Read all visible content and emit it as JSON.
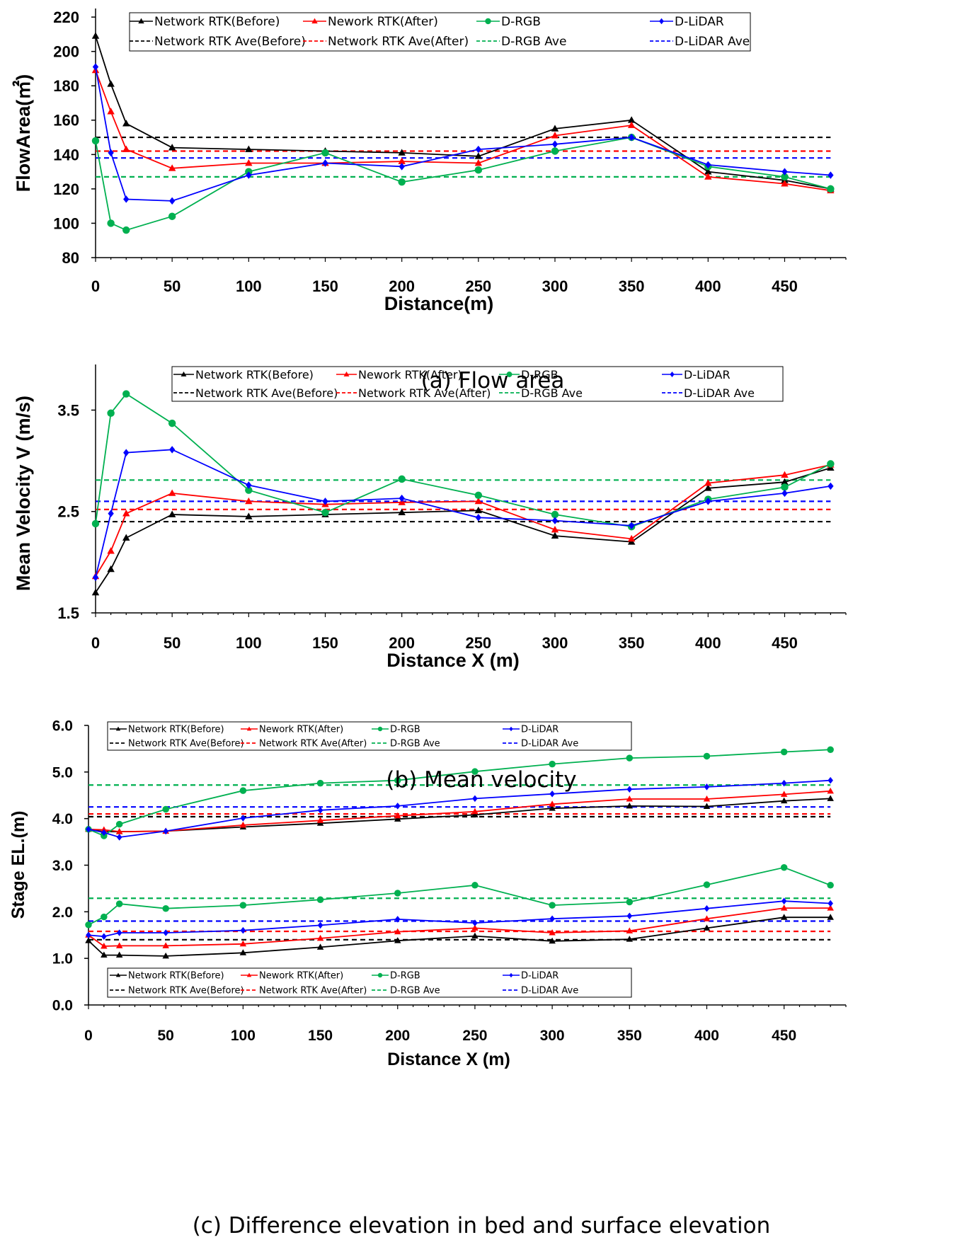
{
  "figure": {
    "captions": [
      "(a) Flow area",
      "(b) Mean velocity",
      "(c) Difference elevation in bed and surface elevation"
    ]
  },
  "chart_data": [
    {
      "type": "line",
      "ylabel": "FlowArea(㎡)",
      "xlabel": "Distance(m)",
      "xlim": [
        0,
        490
      ],
      "ylim": [
        80,
        225
      ],
      "xticks": [
        0,
        50,
        100,
        150,
        200,
        250,
        300,
        350,
        400,
        450
      ],
      "yticks": [
        80,
        100,
        120,
        140,
        160,
        180,
        200,
        220
      ],
      "ytick_labels": [
        "80",
        "100",
        "120",
        "140",
        "160",
        "180",
        "200",
        "220"
      ],
      "x": [
        0,
        10,
        20,
        50,
        100,
        150,
        200,
        250,
        300,
        350,
        400,
        450,
        480
      ],
      "legend_position": "top",
      "series": [
        {
          "name": "Network RTK(Before)",
          "color": "#000000",
          "marker": "triangle",
          "values": [
            209,
            181,
            158,
            144,
            143,
            142,
            141,
            139,
            155,
            160,
            130,
            125,
            120
          ]
        },
        {
          "name": "Nework RTK(After)",
          "color": "#ff0000",
          "marker": "triangle",
          "values": [
            189,
            165,
            143,
            132,
            135,
            135,
            136,
            135,
            151,
            157,
            127,
            123,
            119
          ]
        },
        {
          "name": "D-RGB",
          "color": "#00b050",
          "marker": "circle",
          "values": [
            148,
            100,
            96,
            104,
            130,
            141,
            124,
            131,
            142,
            150,
            133,
            127,
            120
          ]
        },
        {
          "name": "D-LiDAR",
          "color": "#0000ff",
          "marker": "diamond",
          "values": [
            191,
            141,
            114,
            113,
            128,
            135,
            133,
            143,
            146,
            150,
            134,
            130,
            128
          ]
        }
      ],
      "averages": [
        {
          "name": "Network RTK Ave(Before)",
          "color": "#000000",
          "value": 150
        },
        {
          "name": "Network RTK Ave(After)",
          "color": "#ff0000",
          "value": 142
        },
        {
          "name": "D-RGB Ave",
          "color": "#00b050",
          "value": 127
        },
        {
          "name": "D-LiDAR Ave",
          "color": "#0000ff",
          "value": 138
        }
      ],
      "caption": "(a) Flow area"
    },
    {
      "type": "line",
      "ylabel": "Mean Velocity V (m/s)",
      "xlabel": "Distance X (m)",
      "xlim": [
        0,
        490
      ],
      "ylim": [
        1.5,
        3.95
      ],
      "xticks": [
        0,
        50,
        100,
        150,
        200,
        250,
        300,
        350,
        400,
        450
      ],
      "yticks": [
        1.5,
        2.5,
        3.5
      ],
      "ytick_labels": [
        "1.5",
        "2.5",
        "3.5"
      ],
      "x": [
        0,
        10,
        20,
        50,
        100,
        150,
        200,
        250,
        300,
        350,
        400,
        450,
        480
      ],
      "legend_position": "top",
      "series": [
        {
          "name": "Network RTK(Before)",
          "color": "#000000",
          "marker": "triangle",
          "values": [
            1.7,
            1.93,
            2.24,
            2.47,
            2.45,
            2.47,
            2.49,
            2.51,
            2.26,
            2.2,
            2.73,
            2.79,
            2.93
          ]
        },
        {
          "name": "Nework RTK(After)",
          "color": "#ff0000",
          "marker": "triangle",
          "values": [
            1.86,
            2.11,
            2.48,
            2.68,
            2.6,
            2.57,
            2.59,
            2.6,
            2.32,
            2.23,
            2.78,
            2.86,
            2.96
          ]
        },
        {
          "name": "D-RGB",
          "color": "#00b050",
          "marker": "circle",
          "values": [
            2.38,
            3.47,
            3.66,
            3.37,
            2.71,
            2.49,
            2.82,
            2.66,
            2.47,
            2.35,
            2.62,
            2.74,
            2.97
          ]
        },
        {
          "name": "D-LiDAR",
          "color": "#0000ff",
          "marker": "diamond",
          "values": [
            1.85,
            2.48,
            3.08,
            3.11,
            2.76,
            2.6,
            2.63,
            2.44,
            2.41,
            2.36,
            2.6,
            2.68,
            2.75
          ]
        }
      ],
      "averages": [
        {
          "name": "Network RTK Ave(Before)",
          "color": "#000000",
          "value": 2.4
        },
        {
          "name": "Network RTK Ave(After)",
          "color": "#ff0000",
          "value": 2.52
        },
        {
          "name": "D-RGB Ave",
          "color": "#00b050",
          "value": 2.81
        },
        {
          "name": "D-LiDAR Ave",
          "color": "#0000ff",
          "value": 2.6
        }
      ],
      "caption": "(b) Mean velocity"
    },
    {
      "type": "line",
      "ylabel": "Stage EL.(m)",
      "xlabel": "Distance X (m)",
      "xlim": [
        0,
        490
      ],
      "ylim": [
        0,
        6
      ],
      "xticks": [
        0,
        50,
        100,
        150,
        200,
        250,
        300,
        350,
        400,
        450
      ],
      "yticks": [
        0,
        1,
        2,
        3,
        4,
        5,
        6
      ],
      "ytick_labels": [
        "0.0",
        "1.0",
        "2.0",
        "3.0",
        "4.0",
        "5.0",
        "6.0"
      ],
      "x": [
        0,
        10,
        20,
        50,
        100,
        150,
        200,
        250,
        300,
        350,
        400,
        450,
        480
      ],
      "legend_position": "top-left and bottom-left",
      "series": [
        {
          "name": "Network RTK(Before)",
          "group": "surface",
          "color": "#000000",
          "marker": "triangle",
          "values": [
            3.77,
            3.72,
            3.72,
            3.73,
            3.82,
            3.9,
            3.99,
            4.08,
            4.22,
            4.27,
            4.26,
            4.38,
            4.43
          ]
        },
        {
          "name": "Nework RTK(After)",
          "group": "surface",
          "color": "#ff0000",
          "marker": "triangle",
          "values": [
            3.77,
            3.76,
            3.72,
            3.73,
            3.86,
            3.96,
            4.06,
            4.15,
            4.31,
            4.42,
            4.42,
            4.52,
            4.59
          ]
        },
        {
          "name": "D-RGB",
          "group": "surface",
          "color": "#00b050",
          "marker": "circle",
          "values": [
            3.77,
            3.63,
            3.88,
            4.2,
            4.6,
            4.76,
            4.82,
            5.01,
            5.17,
            5.3,
            5.34,
            5.43,
            5.48
          ]
        },
        {
          "name": "D-LiDAR",
          "group": "surface",
          "color": "#0000ff",
          "marker": "diamond",
          "values": [
            3.77,
            3.7,
            3.6,
            3.73,
            4.01,
            4.18,
            4.27,
            4.43,
            4.53,
            4.63,
            4.68,
            4.76,
            4.82
          ]
        },
        {
          "name": "Network RTK(Before)",
          "group": "bed",
          "color": "#000000",
          "marker": "triangle",
          "values": [
            1.38,
            1.07,
            1.07,
            1.05,
            1.12,
            1.24,
            1.38,
            1.48,
            1.37,
            1.41,
            1.65,
            1.88,
            1.88
          ]
        },
        {
          "name": "Nework RTK(After)",
          "group": "bed",
          "color": "#ff0000",
          "marker": "triangle",
          "values": [
            1.5,
            1.26,
            1.27,
            1.27,
            1.31,
            1.43,
            1.57,
            1.65,
            1.55,
            1.59,
            1.85,
            2.08,
            2.08
          ]
        },
        {
          "name": "D-RGB",
          "group": "bed",
          "color": "#00b050",
          "marker": "circle",
          "values": [
            1.72,
            1.89,
            2.17,
            2.07,
            2.14,
            2.26,
            2.4,
            2.57,
            2.14,
            2.21,
            2.58,
            2.95,
            2.57
          ]
        },
        {
          "name": "D-LiDAR",
          "group": "bed",
          "color": "#0000ff",
          "marker": "diamond",
          "values": [
            1.5,
            1.47,
            1.55,
            1.55,
            1.6,
            1.71,
            1.84,
            1.76,
            1.85,
            1.91,
            2.07,
            2.23,
            2.18
          ]
        }
      ],
      "averages": [
        {
          "name": "Network RTK Ave(Before)",
          "group": "surface",
          "color": "#000000",
          "value": 4.04
        },
        {
          "name": "Network RTK Ave(After)",
          "group": "surface",
          "color": "#ff0000",
          "value": 4.1
        },
        {
          "name": "D-RGB Ave",
          "group": "surface",
          "color": "#00b050",
          "value": 4.72
        },
        {
          "name": "D-LiDAR Ave",
          "group": "surface",
          "color": "#0000ff",
          "value": 4.25
        },
        {
          "name": "Network RTK Ave(Before)",
          "group": "bed",
          "color": "#000000",
          "value": 1.4
        },
        {
          "name": "Network RTK Ave(After)",
          "group": "bed",
          "color": "#ff0000",
          "value": 1.58
        },
        {
          "name": "D-RGB Ave",
          "group": "bed",
          "color": "#00b050",
          "value": 2.29
        },
        {
          "name": "D-LiDAR Ave",
          "group": "bed",
          "color": "#0000ff",
          "value": 1.8
        }
      ],
      "legend_labels": {
        "solid": [
          "Network RTK(Before)",
          "Nework RTK(After)",
          "D-RGB",
          "D-LiDAR"
        ],
        "dashed": [
          "Network RTK Ave(Before)",
          "Network RTK Ave(After)",
          "D-RGB Ave",
          "D-LiDAR Ave"
        ]
      },
      "caption": "(c) Difference elevation in bed and surface elevation"
    }
  ]
}
